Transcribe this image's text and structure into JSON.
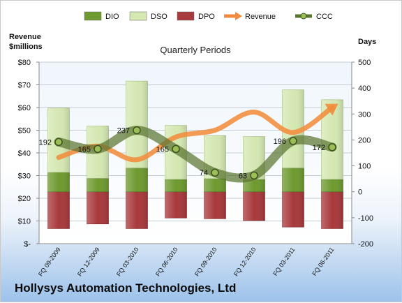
{
  "chart_data": {
    "type": "bar",
    "title": "Quarterly Periods",
    "company": "Hollysys Automation Technologies, Ltd",
    "left_axis_title_line1": "Revenue",
    "left_axis_title_line2": "$millions",
    "right_axis_title": "Days",
    "left_ticks": [
      "$80",
      "$70",
      "$60",
      "$50",
      "$40",
      "$30",
      "$20",
      "$10",
      "$-"
    ],
    "right_ticks": [
      "500",
      "400",
      "300",
      "200",
      "100",
      "0",
      "-100",
      "-200"
    ],
    "y_left_range": [
      0,
      80
    ],
    "y_right_range": [
      -200,
      500
    ],
    "categories": [
      "FQ 09-2009",
      "FQ 12-2009",
      "FQ 03-2010",
      "FQ 06-2010",
      "FQ 09-2010",
      "FQ 12-2010",
      "FQ 03-2011",
      "FQ 06-2011"
    ],
    "series": [
      {
        "name": "DIO",
        "axis": "days",
        "values": [
          75,
          52,
          92,
          48,
          51,
          48,
          92,
          48
        ],
        "color": "#6e9a2f"
      },
      {
        "name": "DSO",
        "axis": "days",
        "values": [
          248,
          202,
          335,
          208,
          166,
          165,
          301,
          307
        ],
        "color": "#d5e8b2"
      },
      {
        "name": "DPO",
        "axis": "days",
        "values": [
          -142,
          -124,
          -142,
          -101,
          -104,
          -111,
          -136,
          -142
        ],
        "color": "#a8393c"
      },
      {
        "name": "Revenue",
        "axis": "revenue",
        "values": [
          38,
          43,
          37,
          47,
          50,
          58,
          49,
          60
        ],
        "color": "#f28c3c"
      },
      {
        "name": "CCC",
        "axis": "days",
        "values": [
          192,
          165,
          237,
          165,
          74,
          63,
          196,
          172
        ],
        "color": "#5a7431"
      }
    ],
    "ccc_labels": [
      "192",
      "165",
      "237",
      "165",
      "74",
      "63",
      "196",
      "172"
    ],
    "legend_position": "top",
    "grid": true
  }
}
